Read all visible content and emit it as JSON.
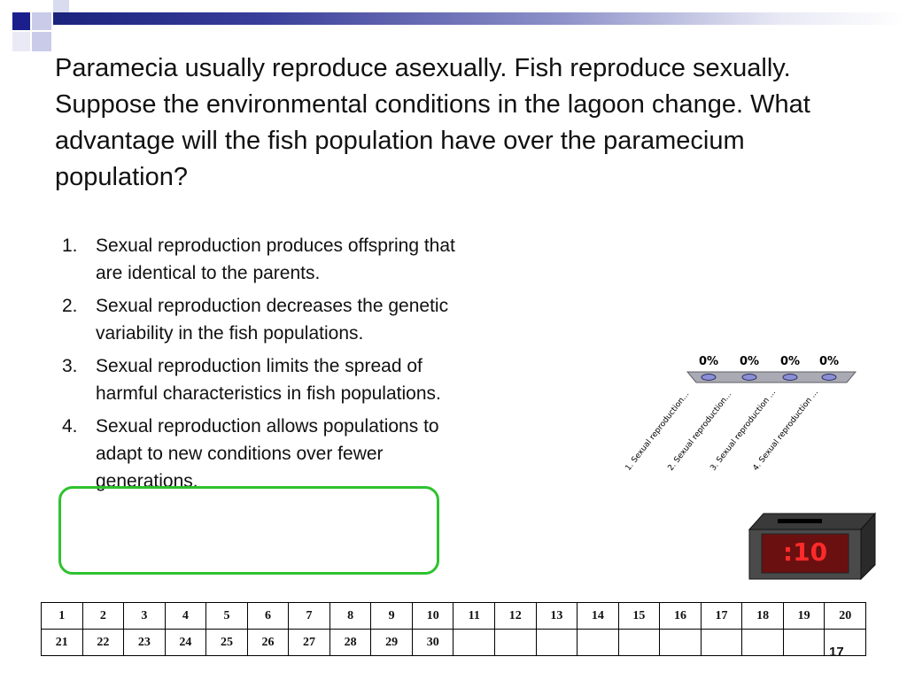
{
  "question": "Paramecia usually reproduce asexually. Fish reproduce sexually. Suppose the environmental conditions in the lagoon change. What advantage will the fish population have over the paramecium population?",
  "options": [
    {
      "num": "1.",
      "text": "Sexual reproduction produces offspring that are identical to the parents."
    },
    {
      "num": "2.",
      "text": "Sexual reproduction decreases the genetic variability in the fish populations."
    },
    {
      "num": "3.",
      "text": "Sexual reproduction limits the spread of harmful characteristics in fish populations."
    },
    {
      "num": "4.",
      "text": "Sexual reproduction allows populations to adapt to new conditions over fewer generations."
    }
  ],
  "chart": {
    "percentages": [
      "0%",
      "0%",
      "0%",
      "0%"
    ],
    "labels": [
      "1.  Sexual reproduction...",
      "2.  Sexual reproduction...",
      "3.  Sexual reproduction ...",
      "4.  Sexual reproduction ..."
    ],
    "marker_fill": "#8a8fd6"
  },
  "timer": {
    "display": ":10"
  },
  "grid": {
    "row1": [
      "1",
      "2",
      "3",
      "4",
      "5",
      "6",
      "7",
      "8",
      "9",
      "10",
      "11",
      "12",
      "13",
      "14",
      "15",
      "16",
      "17",
      "18",
      "19",
      "20"
    ],
    "row2": [
      "21",
      "22",
      "23",
      "24",
      "25",
      "26",
      "27",
      "28",
      "29",
      "30",
      "",
      "",
      "",
      "",
      "",
      "",
      "",
      "",
      "",
      ""
    ]
  },
  "slide_number": "17",
  "colors": {
    "highlight": "#2ec22e",
    "timer_text": "#ff2a2a",
    "accent": "#1a237e"
  }
}
